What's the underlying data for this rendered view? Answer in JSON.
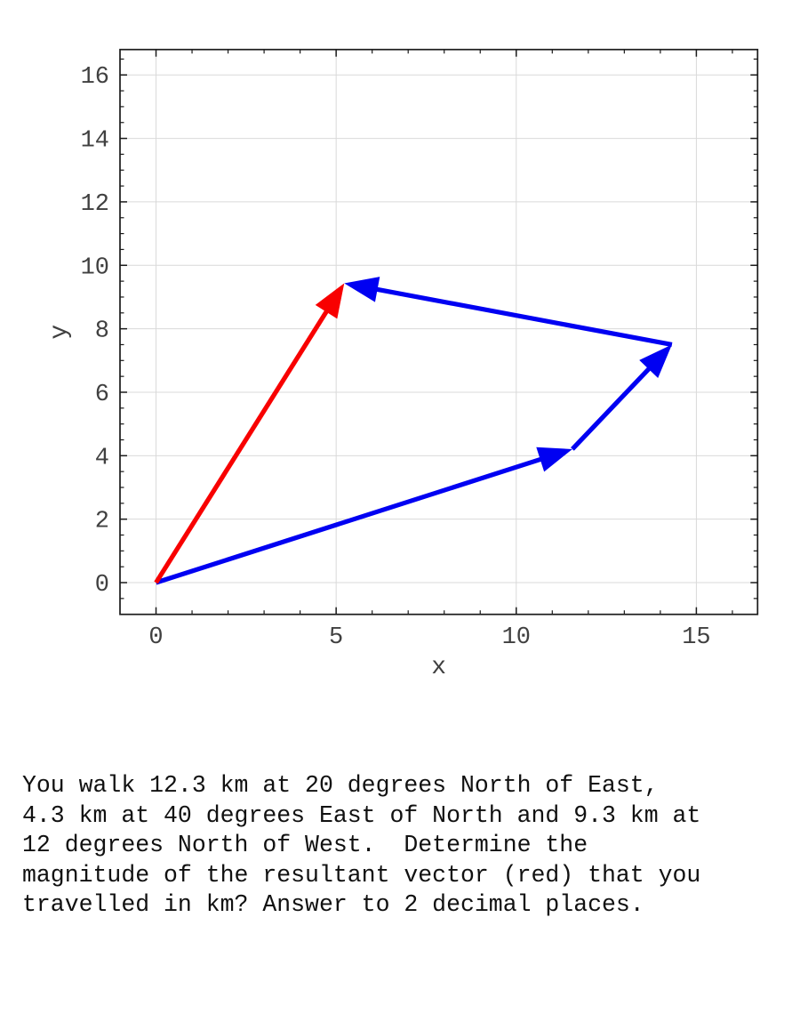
{
  "chart_data": {
    "type": "quiver",
    "title": "",
    "xlabel": "x",
    "ylabel": "y",
    "xlim": [
      -1.0,
      16.7
    ],
    "ylim": [
      -1.0,
      16.8
    ],
    "x_major_ticks": [
      0,
      5,
      10,
      15
    ],
    "y_major_ticks": [
      0,
      2,
      4,
      6,
      8,
      10,
      12,
      14,
      16
    ],
    "x_minor_step": 1,
    "y_minor_step": 0.5,
    "grid": true,
    "grid_color": "#d9d9d9",
    "axis_color": "#1a1a1a",
    "tick_label_color": "#404040",
    "vectors": [
      {
        "name": "leg-1-blue",
        "from": [
          0,
          0
        ],
        "to": [
          11.558,
          4.207
        ],
        "color": "#0000f2",
        "comment": "12.3 km at 20 deg N of E"
      },
      {
        "name": "leg-2-blue",
        "from": [
          11.558,
          4.207
        ],
        "to": [
          14.322,
          7.501
        ],
        "color": "#0000f2",
        "comment": "4.3 km at 40 deg E of N"
      },
      {
        "name": "leg-3-blue",
        "from": [
          14.322,
          7.501
        ],
        "to": [
          5.225,
          9.435
        ],
        "color": "#0000f2",
        "comment": "9.3 km at 12 deg N of W"
      },
      {
        "name": "resultant-red",
        "from": [
          0,
          0
        ],
        "to": [
          5.225,
          9.435
        ],
        "color": "#f80000",
        "comment": "resultant vector"
      }
    ]
  },
  "question": {
    "text": "You walk 12.3 km at 20 degrees North of East,\n4.3 km at 40 degrees East of North and 9.3 km at\n12 degrees North of West.  Determine the\nmagnitude of the resultant vector (red) that you\ntravelled in km? Answer to 2 decimal places."
  }
}
